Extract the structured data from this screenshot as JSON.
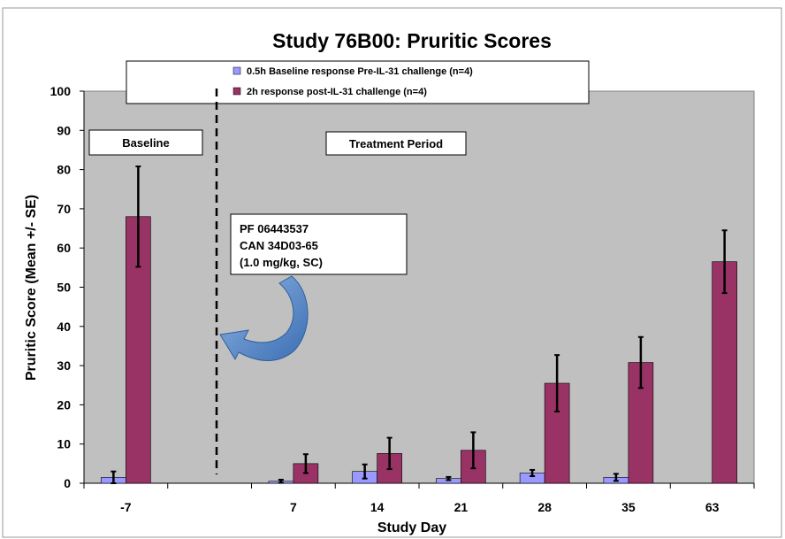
{
  "chart_data": {
    "type": "bar",
    "title": "Study 76B00: Pruritic Scores",
    "xlabel": "Study Day",
    "ylabel": "Pruritic Score (Mean +/- SE)",
    "ylim": [
      0,
      100
    ],
    "yticks": [
      "0",
      "10",
      "20",
      "30",
      "40",
      "50",
      "60",
      "70",
      "80",
      "90",
      "100"
    ],
    "categories": [
      "-7",
      "7",
      "14",
      "21",
      "28",
      "35",
      "63"
    ],
    "grid": false,
    "legend_position": "top",
    "series": [
      {
        "name": "0.5h Baseline response  Pre-IL-31 challenge (n=4)",
        "color": "#9999ff",
        "values": [
          1.5,
          0.5,
          3,
          1.2,
          2.6,
          1.5,
          null
        ],
        "errors": [
          1.5,
          0.4,
          1.8,
          0.4,
          0.8,
          0.9,
          null
        ]
      },
      {
        "name": "2h response post-IL-31 challenge (n=4)",
        "color": "#993366",
        "values": [
          68,
          5,
          7.6,
          8.4,
          25.5,
          30.8,
          56.5
        ],
        "errors": [
          12.8,
          2.4,
          4,
          4.6,
          7.2,
          6.5,
          8
        ]
      }
    ],
    "annotations": {
      "baseline_label": "Baseline",
      "treatment_label": "Treatment Period",
      "dose_lines": [
        "PF 06443537",
        "CAN 34D03-65",
        "(1.0 mg/kg, SC)"
      ]
    }
  }
}
